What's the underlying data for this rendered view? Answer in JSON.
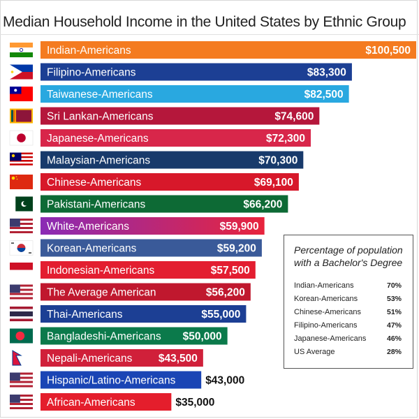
{
  "chart_data": {
    "type": "bar",
    "orientation": "horizontal",
    "title": "Median Household Income in the United States  by Ethnic Group",
    "categories": [
      "Indian-Americans",
      "Filipino-Americans",
      "Taiwanese-Americans",
      "Sri Lankan-Americans",
      "Japanese-Americans",
      "Malaysian-Americans",
      "Chinese-Americans",
      "Pakistani-Americans",
      "White-Americans",
      "Korean-Americans",
      "Indonesian-Americans",
      "The Average American",
      "Thai-Americans",
      "Bangladeshi-Americans",
      "Nepali-Americans",
      "Hispanic/Latino-Americans",
      "African-Americans"
    ],
    "values": [
      100500,
      83300,
      82500,
      74600,
      72300,
      70300,
      69100,
      66200,
      59900,
      59200,
      57500,
      56200,
      55000,
      50000,
      43500,
      43000,
      35000
    ],
    "value_labels": [
      "$100,500",
      "$83,300",
      "$82,500",
      "$74,600",
      "$72,300",
      "$70,300",
      "$69,100",
      "$66,200",
      "$59,900",
      "$59,200",
      "$57,500",
      "$56,200",
      "$55,000",
      "$50,000",
      "$43,500",
      "$43,000",
      "$35,000"
    ],
    "colors": [
      "#f47b20",
      "#1c3f94",
      "#29a8e0",
      "#b5173b",
      "#d8264a",
      "#183a6b",
      "#d7182a",
      "#0d6a35",
      "#8a2bb5",
      "#3a5a99",
      "#e31e30",
      "#c0182e",
      "#1c3f94",
      "#0b7a4b",
      "#d0203a",
      "#1a45b5",
      "#e41e2c"
    ],
    "gradient_end": {
      "White-Americans": "#e8243c"
    },
    "flag_icons": [
      "india-flag-icon",
      "philippines-flag-icon",
      "taiwan-flag-icon",
      "sri-lanka-flag-icon",
      "japan-flag-icon",
      "malaysia-flag-icon",
      "china-flag-icon",
      "pakistan-flag-icon",
      "usa-flag-icon",
      "south-korea-flag-icon",
      "indonesia-flag-icon",
      "usa-flag-icon",
      "thailand-flag-icon",
      "bangladesh-flag-icon",
      "nepal-flag-icon",
      "usa-flag-icon",
      "usa-flag-icon"
    ],
    "xlim": [
      0,
      100500
    ],
    "grid": false
  },
  "inset": {
    "title": "Percentage of population with a Bachelor's Degree",
    "rows": [
      {
        "label": "Indian-Americans",
        "value": "70%"
      },
      {
        "label": "Korean-Americans",
        "value": "53%"
      },
      {
        "label": "Chinese-Americans",
        "value": "51%"
      },
      {
        "label": "Filipino-Americans",
        "value": "47%"
      },
      {
        "label": "Japanese-Americans",
        "value": "46%"
      },
      {
        "label": "US Average",
        "value": "28%"
      }
    ]
  }
}
